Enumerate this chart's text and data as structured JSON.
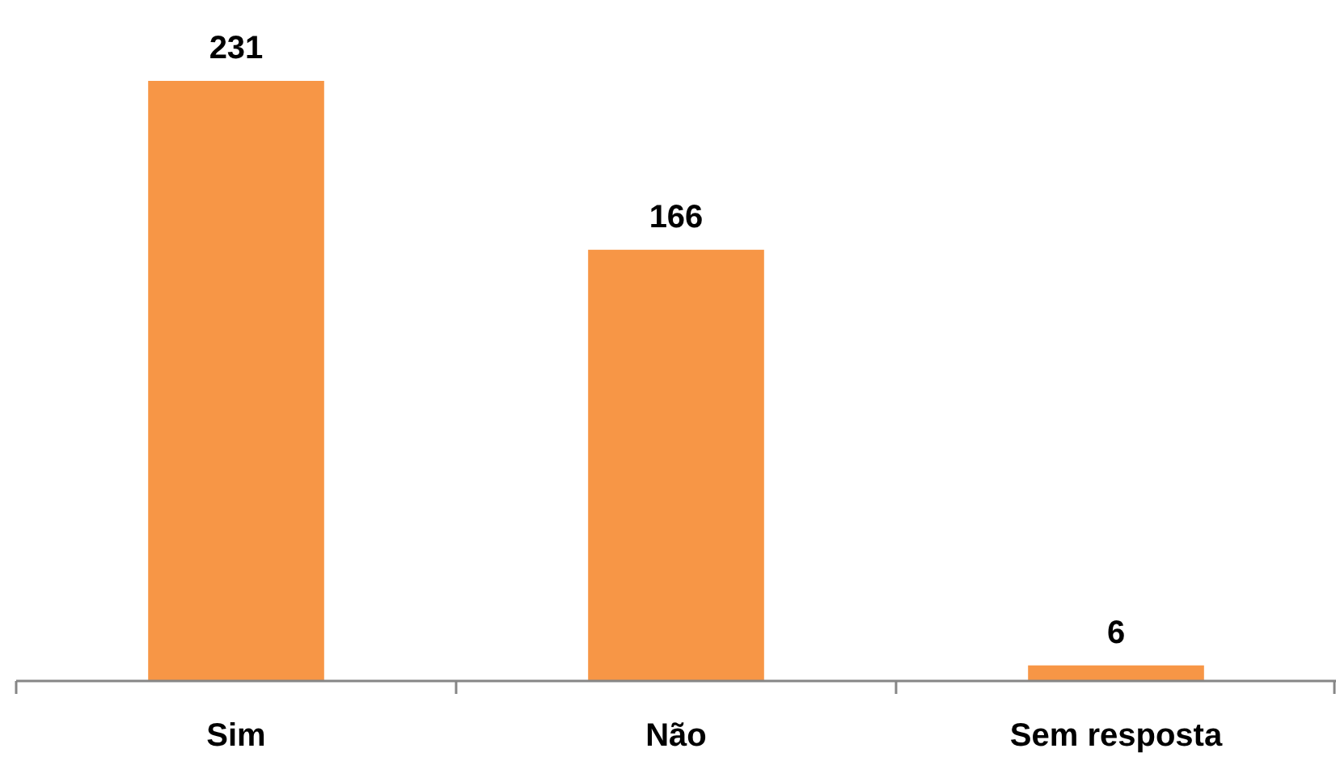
{
  "chart_data": {
    "type": "bar",
    "categories": [
      "Sim",
      "Não",
      "Sem resposta"
    ],
    "values": [
      231,
      166,
      6
    ],
    "color": "#f79646",
    "data_labels": true
  }
}
